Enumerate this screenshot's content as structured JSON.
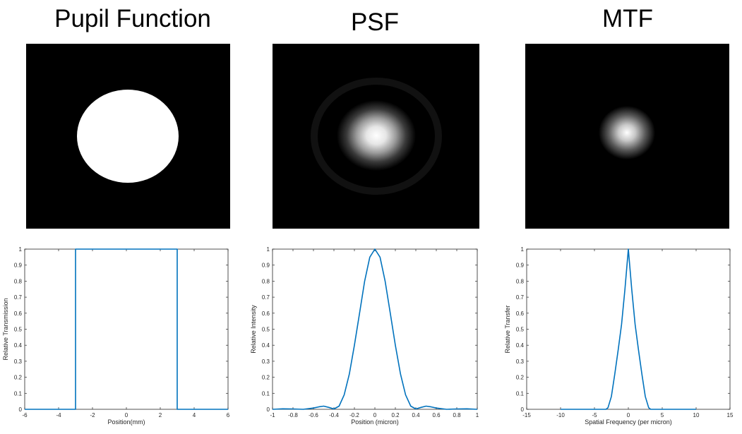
{
  "colors": {
    "background": "#ffffff",
    "image_background": "#000000",
    "line": "#0072bd",
    "axis": "#262626"
  },
  "panels": [
    {
      "title": "Pupil Function",
      "image": "white-disk"
    },
    {
      "title": "PSF",
      "image": "airy-pattern"
    },
    {
      "title": "MTF",
      "image": "mtf-blob"
    }
  ],
  "chart_data": [
    {
      "type": "line",
      "xlabel": "Position(mm)",
      "ylabel": "Relative Transmission",
      "xlim": [
        -6,
        6
      ],
      "ylim": [
        0,
        1
      ],
      "xticks": [
        -6,
        -4,
        -2,
        0,
        2,
        4,
        6
      ],
      "xtick_labels": [
        "-6",
        "-4",
        "-2",
        "0",
        "2",
        "4",
        "6"
      ],
      "yticks": [
        0,
        0.1,
        0.2,
        0.3,
        0.4,
        0.5,
        0.6,
        0.7,
        0.8,
        0.9,
        1
      ],
      "ytick_labels": [
        "0",
        "0.1",
        "0.2",
        "0.3",
        "0.4",
        "0.5",
        "0.6",
        "0.7",
        "0.8",
        "0.9",
        "1"
      ],
      "grid": false,
      "series": [
        {
          "x": [
            -6,
            -3,
            -3,
            3,
            3,
            6
          ],
          "y": [
            0,
            0,
            1,
            1,
            0,
            0
          ]
        }
      ]
    },
    {
      "type": "line",
      "xlabel": "Position (micron)",
      "ylabel": "Relative Intensity",
      "xlim": [
        -1,
        1
      ],
      "ylim": [
        0,
        1
      ],
      "xticks": [
        -1,
        -0.8,
        -0.6,
        -0.4,
        -0.2,
        0,
        0.2,
        0.4,
        0.6,
        0.8,
        1
      ],
      "xtick_labels": [
        "-1",
        "-0.8",
        "-0.6",
        "-0.4",
        "-0.2",
        "0",
        "0.2",
        "0.4",
        "0.6",
        "0.8",
        "1"
      ],
      "yticks": [
        0,
        0.1,
        0.2,
        0.3,
        0.4,
        0.5,
        0.6,
        0.7,
        0.8,
        0.9,
        1
      ],
      "ytick_labels": [
        "0",
        "0.1",
        "0.2",
        "0.3",
        "0.4",
        "0.5",
        "0.6",
        "0.7",
        "0.8",
        "0.9",
        "1"
      ],
      "grid": false,
      "series": [
        {
          "x": [
            -1.0,
            -0.9,
            -0.8,
            -0.7,
            -0.6,
            -0.55,
            -0.5,
            -0.45,
            -0.4,
            -0.35,
            -0.3,
            -0.25,
            -0.2,
            -0.15,
            -0.1,
            -0.05,
            0,
            0.05,
            0.1,
            0.15,
            0.2,
            0.25,
            0.3,
            0.35,
            0.4,
            0.45,
            0.5,
            0.55,
            0.6,
            0.7,
            0.8,
            0.9,
            1.0
          ],
          "y": [
            0,
            0.003,
            0.002,
            0,
            0.008,
            0.015,
            0.02,
            0.012,
            0.002,
            0.02,
            0.09,
            0.22,
            0.4,
            0.6,
            0.8,
            0.95,
            1.0,
            0.95,
            0.8,
            0.6,
            0.4,
            0.22,
            0.09,
            0.02,
            0.002,
            0.012,
            0.02,
            0.015,
            0.008,
            0,
            0.002,
            0.003,
            0
          ]
        }
      ]
    },
    {
      "type": "line",
      "xlabel": "Spatial Frequency (per micron)",
      "ylabel": "Relative Transfer",
      "xlim": [
        -15,
        15
      ],
      "ylim": [
        0,
        1
      ],
      "xticks": [
        -15,
        -10,
        -5,
        0,
        5,
        10,
        15
      ],
      "xtick_labels": [
        "-15",
        "-10",
        "-5",
        "0",
        "5",
        "10",
        "15"
      ],
      "yticks": [
        0,
        0.1,
        0.2,
        0.3,
        0.4,
        0.5,
        0.6,
        0.7,
        0.8,
        0.9,
        1
      ],
      "ytick_labels": [
        "0",
        "0.1",
        "0.2",
        "0.3",
        "0.4",
        "0.5",
        "0.6",
        "0.7",
        "0.8",
        "0.9",
        "1"
      ],
      "grid": false,
      "series": [
        {
          "x": [
            -10,
            -5,
            -3.3,
            -3,
            -2.5,
            -2,
            -1.5,
            -1,
            -0.5,
            0,
            0.5,
            1,
            1.5,
            2,
            2.5,
            3,
            3.3,
            5,
            10
          ],
          "y": [
            0,
            0,
            0,
            0.01,
            0.08,
            0.22,
            0.37,
            0.53,
            0.75,
            1.0,
            0.75,
            0.53,
            0.37,
            0.22,
            0.08,
            0.01,
            0,
            0,
            0
          ]
        }
      ]
    }
  ]
}
